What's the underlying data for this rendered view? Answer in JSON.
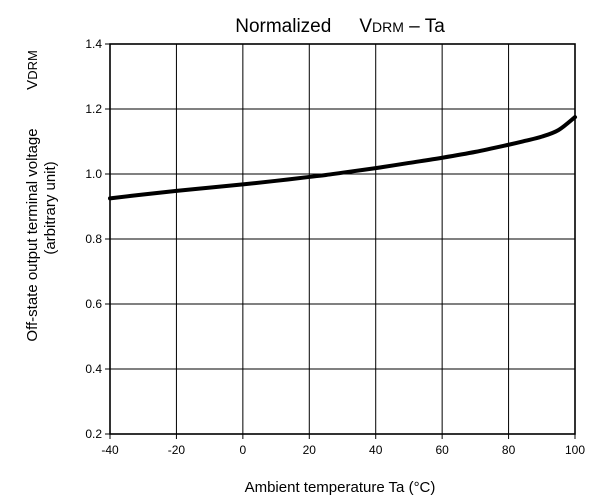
{
  "chart_data": {
    "type": "line",
    "title": {
      "prefix": "Normalized",
      "var_main": "V",
      "var_sub": "DRM",
      "suffix": " – Ta"
    },
    "xlabel": "Ambient   temperature   Ta    (°C)",
    "ylabel": {
      "line1": "Off-state   output   terminal   voltage",
      "var_main": "V",
      "var_sub": "DRM",
      "line2": "(arbitrary   unit)"
    },
    "xlim": [
      -40,
      100
    ],
    "ylim": [
      0.2,
      1.4
    ],
    "x_ticks": [
      "-40",
      "-20",
      "0",
      "20",
      "40",
      "60",
      "80",
      "100"
    ],
    "y_ticks": [
      "0.2",
      "0.4",
      "0.6",
      "0.8",
      "1.0",
      "1.2",
      "1.4"
    ],
    "grid": true,
    "series": [
      {
        "x": [
          -40,
          -30,
          -20,
          -10,
          0,
          10,
          20,
          25,
          30,
          40,
          50,
          60,
          70,
          80,
          85,
          90,
          95,
          100
        ],
        "y": [
          0.925,
          0.937,
          0.948,
          0.958,
          0.968,
          0.979,
          0.991,
          0.997,
          1.004,
          1.018,
          1.034,
          1.05,
          1.068,
          1.09,
          1.102,
          1.115,
          1.135,
          1.175
        ],
        "color": "#000000"
      }
    ]
  }
}
